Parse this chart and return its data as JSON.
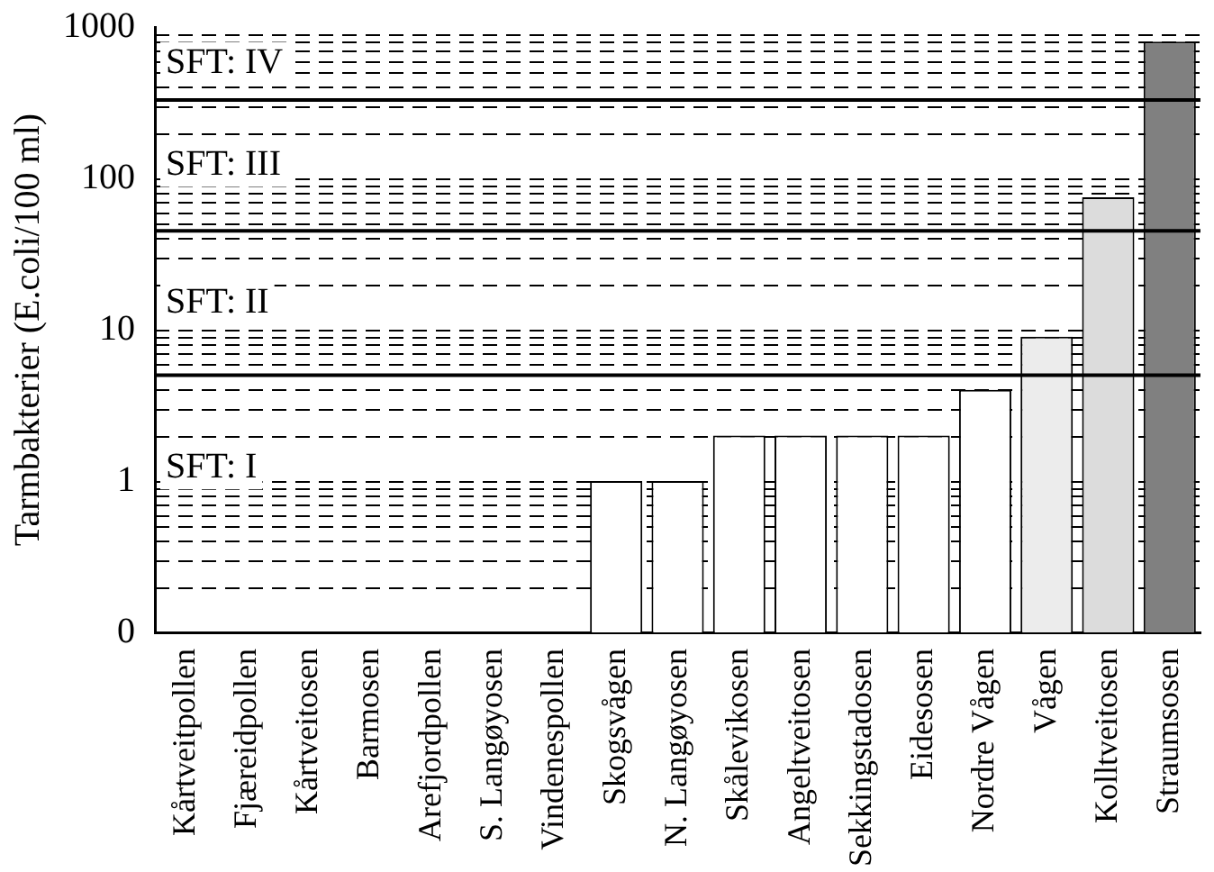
{
  "chart_data": {
    "type": "bar",
    "ylabel": "Tarmbakterier (E.coli/100 ml)",
    "categories": [
      "Kårtveitpollen",
      "Fjæreidpollen",
      "Kårtveitosen",
      "Barmosen",
      "Arefjordpollen",
      "S. Langøyosen",
      "Vindenespollen",
      "Skogsvågen",
      "N. Langøyosen",
      "Skålevikosen",
      "Angeltveitosen",
      "Sekkingstadosen",
      "Eidesosen",
      "Nordre Vågen",
      "Vågen",
      "Kolltveitosen",
      "Straumsosen"
    ],
    "values": [
      null,
      null,
      null,
      null,
      null,
      null,
      null,
      1,
      1,
      2,
      2,
      2,
      2,
      4,
      9,
      75,
      800
    ],
    "colors": [
      "#ffffff",
      "#ffffff",
      "#ffffff",
      "#ffffff",
      "#ffffff",
      "#ffffff",
      "#ffffff",
      "#ffffff",
      "#ffffff",
      "#ffffff",
      "#ffffff",
      "#ffffff",
      "#ffffff",
      "#ffffff",
      "#ececec",
      "#dcdcdc",
      "#808080"
    ],
    "log": "y",
    "ylim": [
      0.1,
      1000
    ],
    "yticks": [
      {
        "value": 0.1,
        "label": "0"
      },
      1,
      10,
      100,
      1000
    ],
    "grid": "y",
    "legend": false,
    "ref_lines": [
      {
        "axis": "y",
        "value": 5,
        "label": "SFT: II"
      },
      {
        "axis": "y",
        "value": 45,
        "label": "SFT: III"
      },
      {
        "axis": "y",
        "value": 330,
        "label": "SFT: IV"
      }
    ],
    "annotations": [
      "SFT: I"
    ]
  }
}
